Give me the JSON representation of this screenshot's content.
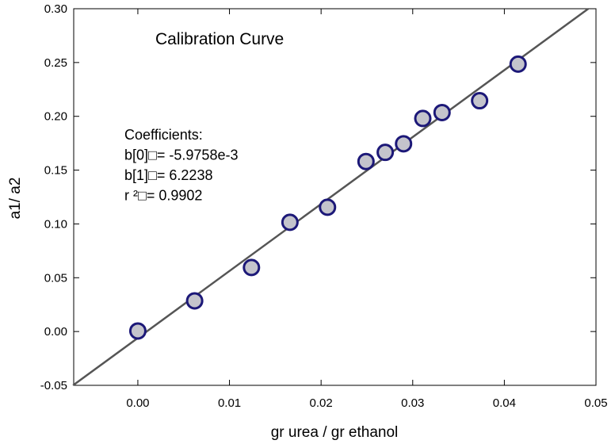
{
  "chart_data": {
    "type": "scatter",
    "title": "Calibration Curve",
    "xlabel": "gr urea / gr ethanol",
    "ylabel": "a1/ a2",
    "xlim": [
      -0.007,
      0.05
    ],
    "ylim": [
      -0.05,
      0.3
    ],
    "x_ticks": [
      0.0,
      0.01,
      0.02,
      0.03,
      0.04,
      0.05
    ],
    "x_tick_labels": [
      "0.00",
      "0.01",
      "0.02",
      "0.03",
      "0.04",
      "0.05"
    ],
    "y_ticks": [
      -0.05,
      0.0,
      0.05,
      0.1,
      0.15,
      0.2,
      0.25,
      0.3
    ],
    "y_tick_labels": [
      "-0.05",
      "0.00",
      "0.05",
      "0.10",
      "0.15",
      "0.20",
      "0.25",
      "0.30"
    ],
    "grid": false,
    "points": [
      {
        "x": 0.0,
        "y": 0.0005
      },
      {
        "x": 0.0062,
        "y": 0.0285
      },
      {
        "x": 0.0124,
        "y": 0.0595
      },
      {
        "x": 0.0166,
        "y": 0.1015
      },
      {
        "x": 0.0207,
        "y": 0.1155
      },
      {
        "x": 0.0249,
        "y": 0.158
      },
      {
        "x": 0.027,
        "y": 0.1665
      },
      {
        "x": 0.029,
        "y": 0.1745
      },
      {
        "x": 0.0311,
        "y": 0.198
      },
      {
        "x": 0.0332,
        "y": 0.2035
      },
      {
        "x": 0.0373,
        "y": 0.2145
      },
      {
        "x": 0.0415,
        "y": 0.2485
      }
    ],
    "fit": {
      "intercept": -0.0059758,
      "slope": 6.2238
    },
    "annotation_lines": [
      "Coefficients:",
      "b[0]□= -5.9758e-3",
      "b[1]□= 6.2238",
      "r ²□= 0.9902"
    ],
    "colors": {
      "marker_fill": "#c4c4cc",
      "marker_edge": "#1c1878",
      "fit_line": "#555555",
      "axes": "#000000"
    }
  }
}
